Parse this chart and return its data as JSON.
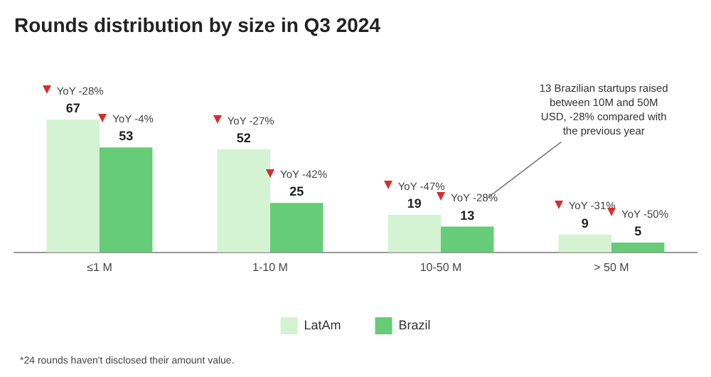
{
  "chart_data": {
    "type": "bar",
    "title": "Rounds distribution by size in Q3 2024",
    "categories": [
      "≤1 M",
      "1-10 M",
      "10-50 M",
      "> 50 M"
    ],
    "series": [
      {
        "name": "LatAm",
        "color": "#d3f3d3",
        "values": [
          67,
          52,
          19,
          9
        ]
      },
      {
        "name": "Brazil",
        "color": "#66cc77",
        "values": [
          53,
          25,
          13,
          5
        ]
      }
    ],
    "data_labels": true,
    "legend": "bottom",
    "grid": false,
    "annotations": [
      {
        "text": "YoY -28%",
        "x": "≤1 M",
        "y": 67
      },
      {
        "text": "YoY -4%",
        "x": "≤1 M",
        "y": 53
      },
      {
        "text": "YoY -27%",
        "x": "1-10 M",
        "y": 52
      },
      {
        "text": "YoY -42%",
        "x": "1-10 M",
        "y": 25
      },
      {
        "text": "YoY -47%",
        "x": "10-50 M",
        "y": 19
      },
      {
        "text": "YoY -28%",
        "x": "10-50 M",
        "y": 13
      },
      {
        "text": "YoY -31%",
        "x": "> 50 M",
        "y": 9
      },
      {
        "text": "YoY -50%",
        "x": "> 50 M",
        "y": 5
      },
      "13 Brazilian startups raised between 10M and 50M USD, -28% compared with the previous year",
      "*24 rounds haven't disclosed their amount value."
    ]
  }
}
